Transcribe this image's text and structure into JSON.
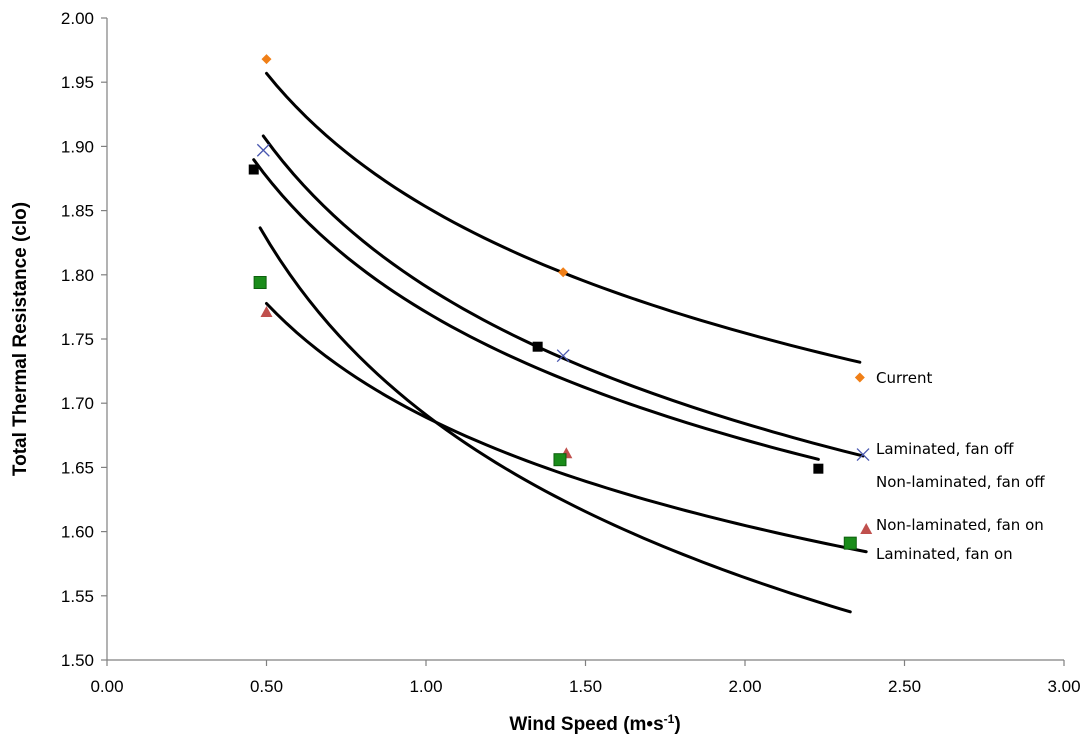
{
  "chart_data": {
    "type": "scatter",
    "xlabel": "Wind Speed (m•s",
    "xlabel_sup": "-1",
    "xlabel_end": ")",
    "ylabel": "Total Thermal Resistance (clo)",
    "xlim": [
      0,
      3
    ],
    "ylim": [
      1.5,
      2.0
    ],
    "x_ticks": [
      "0.00",
      "0.50",
      "1.00",
      "1.50",
      "2.00",
      "2.50",
      "3.00"
    ],
    "y_ticks": [
      "1.50",
      "1.55",
      "1.60",
      "1.65",
      "1.70",
      "1.75",
      "1.80",
      "1.85",
      "1.90",
      "1.95",
      "2.00"
    ],
    "grid": false,
    "legend": "inline labels at right end of each series",
    "series": [
      {
        "name": "Current",
        "marker": "diamond",
        "color": "#F07F17",
        "points": [
          [
            0.5,
            1.968
          ],
          [
            1.43,
            1.802
          ],
          [
            2.36,
            1.72
          ]
        ],
        "fit": {
          "from": 0.5,
          "to": 2.36,
          "a": 1.853,
          "b": -0.0787
        }
      },
      {
        "name": "Laminated, fan off",
        "marker": "x",
        "color": "#4A58B0",
        "points": [
          [
            0.49,
            1.897
          ],
          [
            1.43,
            1.737
          ],
          [
            2.37,
            1.66
          ]
        ],
        "fit": {
          "from": 0.49,
          "to": 2.37,
          "a": 1.791,
          "b": -0.0888
        }
      },
      {
        "name": "Non-laminated, fan off",
        "marker": "square",
        "color": "#000000",
        "points": [
          [
            0.46,
            1.882
          ],
          [
            1.35,
            1.744
          ],
          [
            2.23,
            1.649
          ]
        ],
        "fit": {
          "from": 0.46,
          "to": 2.23,
          "a": 1.771,
          "b": -0.0835
        }
      },
      {
        "name": "Non-laminated, fan on",
        "marker": "triangle",
        "color": "#C0504D",
        "points": [
          [
            0.5,
            1.771
          ],
          [
            1.44,
            1.661
          ],
          [
            2.38,
            1.602
          ]
        ],
        "fit": {
          "from": 0.5,
          "to": 2.38,
          "a": 1.689,
          "b": -0.0738
        }
      },
      {
        "name": "Laminated, fan on",
        "marker": "square",
        "color": "#1A8C1A",
        "points": [
          [
            0.48,
            1.794
          ],
          [
            1.42,
            1.656
          ],
          [
            2.33,
            1.591
          ]
        ],
        "fit": {
          "from": 0.48,
          "to": 2.33,
          "a": 1.691,
          "b": -0.1125
        }
      }
    ]
  }
}
